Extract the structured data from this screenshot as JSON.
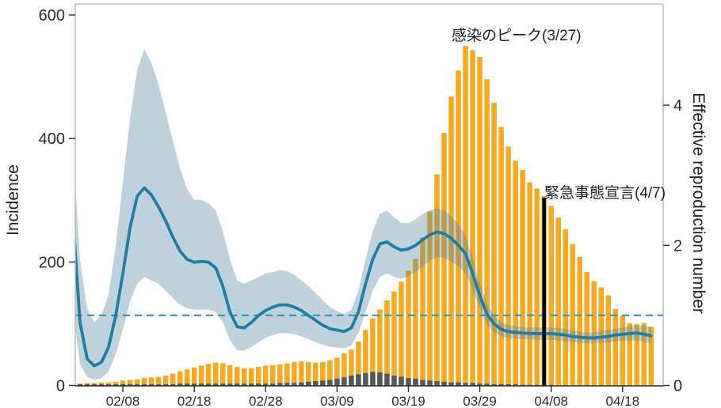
{
  "chart_data": {
    "type": "bar",
    "title": "",
    "xlabel": "",
    "ylabel_left": "Incidence",
    "ylabel_right": "Effective reproduction number",
    "ylim_left": [
      0,
      600
    ],
    "ylim_right": [
      0,
      5.45
    ],
    "left_ticks": [
      0,
      200,
      400,
      600
    ],
    "right_ticks": [
      0,
      2,
      4
    ],
    "x_ticks": [
      {
        "label": "02/08",
        "day_index": 7
      },
      {
        "label": "02/18",
        "day_index": 17
      },
      {
        "label": "02/28",
        "day_index": 27
      },
      {
        "label": "03/09",
        "day_index": 37
      },
      {
        "label": "03/19",
        "day_index": 47
      },
      {
        "label": "03/29",
        "day_index": 57
      },
      {
        "label": "04/08",
        "day_index": 67
      },
      {
        "label": "04/18",
        "day_index": 77
      }
    ],
    "grid": false,
    "legend": "none",
    "categories": [
      "02/01",
      "02/02",
      "02/03",
      "02/04",
      "02/05",
      "02/06",
      "02/07",
      "02/08",
      "02/09",
      "02/10",
      "02/11",
      "02/12",
      "02/13",
      "02/14",
      "02/15",
      "02/16",
      "02/17",
      "02/18",
      "02/19",
      "02/20",
      "02/21",
      "02/22",
      "02/23",
      "02/24",
      "02/25",
      "02/26",
      "02/27",
      "02/28",
      "02/29",
      "03/01",
      "03/02",
      "03/03",
      "03/04",
      "03/05",
      "03/06",
      "03/07",
      "03/08",
      "03/09",
      "03/10",
      "03/11",
      "03/12",
      "03/13",
      "03/14",
      "03/15",
      "03/16",
      "03/17",
      "03/18",
      "03/19",
      "03/20",
      "03/21",
      "03/22",
      "03/23",
      "03/24",
      "03/25",
      "03/26",
      "03/27",
      "03/28",
      "03/29",
      "03/30",
      "03/31",
      "04/01",
      "04/02",
      "04/03",
      "04/04",
      "04/05",
      "04/06",
      "04/07",
      "04/08",
      "04/09",
      "04/10",
      "04/11",
      "04/12",
      "04/13",
      "04/14",
      "04/15",
      "04/16",
      "04/17",
      "04/18",
      "04/19",
      "04/20",
      "04/21",
      "04/22"
    ],
    "series": [
      {
        "name": "incidence-bars",
        "type": "bar",
        "axis": "left",
        "color": "#F6A821",
        "values": [
          0,
          3,
          4,
          4,
          5,
          5,
          6,
          8,
          9,
          10,
          12,
          13,
          14,
          16,
          19,
          23,
          26,
          29,
          32,
          35,
          37,
          36,
          33,
          30,
          28,
          28,
          30,
          32,
          33,
          34,
          36,
          38,
          39,
          38,
          37,
          38,
          41,
          45,
          52,
          58,
          71,
          90,
          109,
          123,
          138,
          152,
          168,
          186,
          205,
          240,
          282,
          342,
          409,
          468,
          510,
          550,
          543,
          532,
          496,
          458,
          419,
          387,
          364,
          349,
          329,
          319,
          307,
          291,
          272,
          253,
          229,
          208,
          184,
          169,
          159,
          146,
          124,
          113,
          101,
          99,
          101,
          95
        ]
      },
      {
        "name": "incidence-dark-bars",
        "type": "bar",
        "axis": "left",
        "color": "#52585D",
        "values": [
          0,
          2,
          2,
          2,
          2,
          2,
          2,
          2,
          2,
          2,
          2,
          2,
          2,
          2,
          2,
          3,
          3,
          3,
          3,
          3,
          3,
          3,
          3,
          3,
          3,
          3,
          3,
          3,
          3,
          4,
          4,
          4,
          5,
          6,
          7,
          8,
          9,
          11,
          13,
          16,
          18,
          20,
          22,
          21,
          19,
          16,
          14,
          12,
          11,
          9,
          8,
          7,
          6,
          5,
          5,
          4,
          4,
          3,
          3,
          2,
          2,
          2,
          2,
          1,
          1,
          1,
          1,
          1,
          0,
          0,
          0,
          0,
          0,
          0,
          0,
          0,
          0,
          0,
          0,
          0,
          0,
          0
        ]
      },
      {
        "name": "effective-reproduction-number",
        "type": "line",
        "axis": "right",
        "color": "#1F7EA1",
        "values": [
          2.4,
          0.9,
          0.38,
          0.28,
          0.33,
          0.55,
          1.0,
          1.6,
          2.25,
          2.7,
          2.82,
          2.72,
          2.55,
          2.35,
          2.12,
          1.92,
          1.8,
          1.76,
          1.77,
          1.76,
          1.68,
          1.42,
          1.05,
          0.84,
          0.82,
          0.9,
          1.0,
          1.07,
          1.12,
          1.15,
          1.15,
          1.12,
          1.07,
          1.0,
          0.93,
          0.86,
          0.81,
          0.79,
          0.77,
          0.82,
          1.05,
          1.45,
          1.8,
          2.02,
          2.05,
          1.98,
          1.93,
          1.95,
          2.0,
          2.08,
          2.15,
          2.19,
          2.17,
          2.1,
          2.0,
          1.88,
          1.6,
          1.28,
          1.02,
          0.88,
          0.8,
          0.77,
          0.76,
          0.75,
          0.74,
          0.74,
          0.74,
          0.74,
          0.73,
          0.72,
          0.7,
          0.69,
          0.68,
          0.68,
          0.69,
          0.7,
          0.72,
          0.73,
          0.74,
          0.75,
          0.73,
          0.71
        ]
      },
      {
        "name": "rt-ci-lower",
        "type": "area-lower-bound",
        "axis": "right",
        "color": "rgba(86,137,160,0.38)",
        "values": [
          1.1,
          0.3,
          0.12,
          0.08,
          0.1,
          0.2,
          0.45,
          0.8,
          1.2,
          1.45,
          1.55,
          1.5,
          1.45,
          1.35,
          1.25,
          1.15,
          1.1,
          1.08,
          1.08,
          1.08,
          1.05,
          0.9,
          0.65,
          0.5,
          0.5,
          0.55,
          0.62,
          0.68,
          0.72,
          0.75,
          0.75,
          0.73,
          0.7,
          0.66,
          0.62,
          0.58,
          0.55,
          0.54,
          0.53,
          0.57,
          0.75,
          1.05,
          1.35,
          1.55,
          1.6,
          1.55,
          1.52,
          1.56,
          1.62,
          1.7,
          1.78,
          1.83,
          1.82,
          1.77,
          1.7,
          1.6,
          1.37,
          1.1,
          0.88,
          0.76,
          0.7,
          0.68,
          0.67,
          0.66,
          0.66,
          0.65,
          0.65,
          0.65,
          0.64,
          0.63,
          0.62,
          0.61,
          0.6,
          0.6,
          0.61,
          0.61,
          0.63,
          0.64,
          0.64,
          0.65,
          0.62,
          0.6
        ]
      },
      {
        "name": "rt-ci-upper",
        "type": "area-upper-bound",
        "axis": "right",
        "color": "rgba(86,137,160,0.38)",
        "values": [
          3.4,
          1.8,
          1.1,
          0.9,
          1.0,
          1.3,
          2.0,
          2.9,
          3.8,
          4.5,
          4.8,
          4.6,
          4.3,
          3.9,
          3.5,
          3.1,
          2.8,
          2.65,
          2.65,
          2.6,
          2.5,
          2.2,
          1.8,
          1.5,
          1.45,
          1.5,
          1.55,
          1.6,
          1.62,
          1.65,
          1.63,
          1.58,
          1.5,
          1.42,
          1.32,
          1.22,
          1.12,
          1.06,
          1.02,
          1.08,
          1.35,
          1.8,
          2.2,
          2.45,
          2.5,
          2.4,
          2.32,
          2.32,
          2.37,
          2.45,
          2.5,
          2.53,
          2.5,
          2.42,
          2.3,
          2.15,
          1.83,
          1.47,
          1.17,
          1.0,
          0.9,
          0.86,
          0.85,
          0.84,
          0.83,
          0.83,
          0.83,
          0.83,
          0.82,
          0.81,
          0.79,
          0.77,
          0.76,
          0.76,
          0.78,
          0.79,
          0.81,
          0.83,
          0.85,
          0.86,
          0.85,
          0.84
        ]
      }
    ],
    "reference_line": {
      "axis": "right",
      "value": 1,
      "style": "dashed",
      "color": "#3E97B7"
    },
    "event_line": {
      "day_index": 66,
      "date": "04/07",
      "color": "#000000"
    },
    "annotations": [
      {
        "text": "感染のピーク(3/27)",
        "date": "03/27",
        "day_index": 55
      },
      {
        "text": "緊急事態宣言(4/7)",
        "date": "04/07",
        "day_index": 66
      }
    ],
    "colors": {
      "bar_main": "#F6A821",
      "bar_dark": "#52585D",
      "rt_line": "#1F7EA1",
      "rt_band": "rgba(86,137,160,0.38)",
      "reference_dashed": "#3E97B7",
      "event_line": "#000000",
      "axis_frame_light": "#B3B8BC",
      "axis_bottom": "#2A2E32",
      "tick_text": "#2B2B2B"
    }
  }
}
